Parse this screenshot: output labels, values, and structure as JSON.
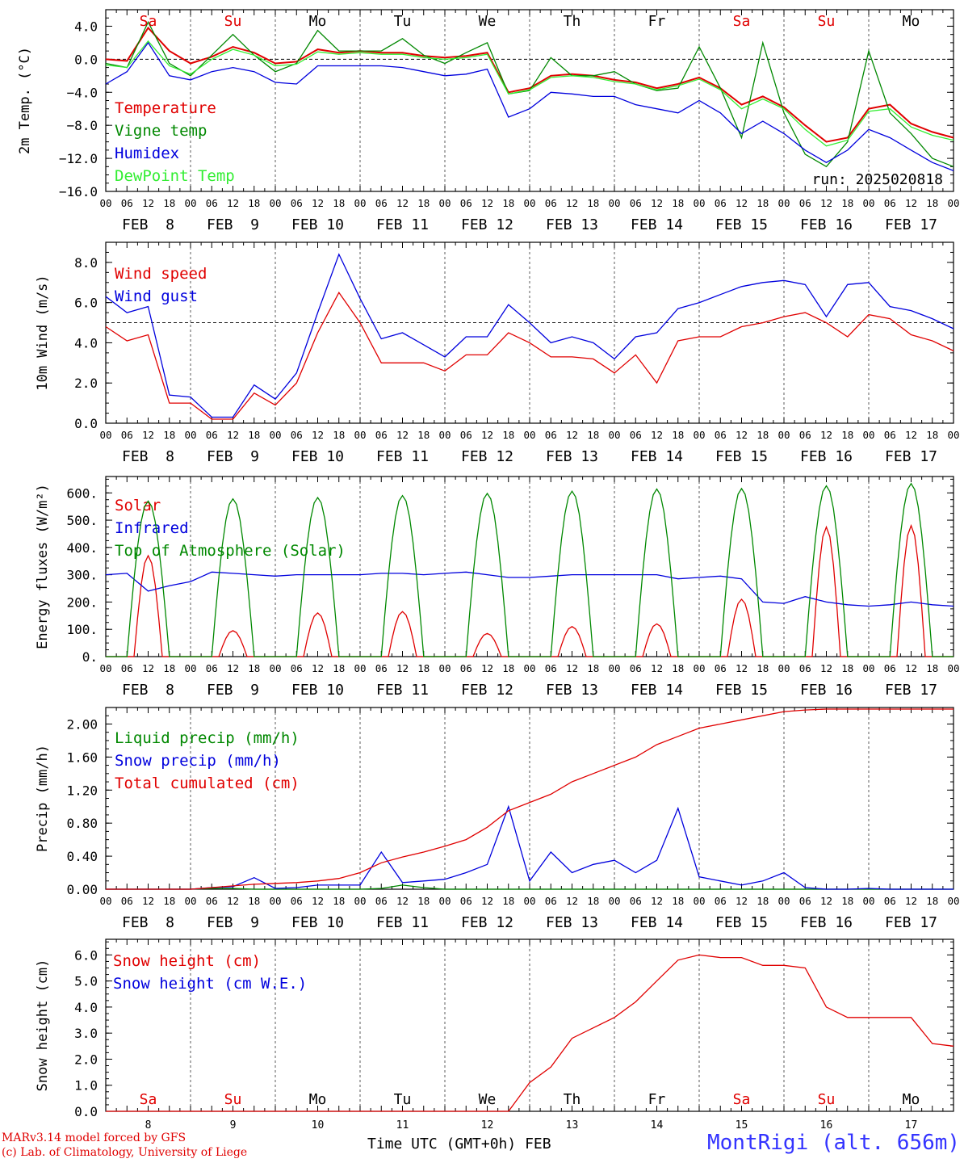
{
  "chart_data": [
    {
      "type": "line",
      "ylabel": "2m Temp. (°C)",
      "ylim": [
        -16,
        6
      ],
      "yticks": [
        4.0,
        0.0,
        -4.0,
        -8.0,
        -12.0,
        -16.0
      ],
      "ytick_labels": [
        "4.0",
        "0.0",
        "−4.0",
        "−8.0",
        "−12.0",
        "−16.0"
      ],
      "reference_line": 0,
      "annotation": "run: 2025020818",
      "x_hours": [
        0,
        6,
        12,
        18,
        24,
        30,
        36,
        42,
        48,
        54,
        60,
        66,
        72,
        78,
        84,
        90,
        96,
        102,
        108,
        114,
        120,
        126,
        132,
        138,
        144,
        150,
        156,
        162,
        168,
        174,
        180,
        186,
        192,
        198,
        204,
        210,
        216,
        222,
        228,
        234,
        240
      ],
      "series": [
        {
          "name": "Temperature",
          "color": "#e00000",
          "values": [
            0.0,
            -0.2,
            3.8,
            1.0,
            -0.5,
            0.3,
            1.5,
            0.8,
            -0.5,
            -0.3,
            1.2,
            0.8,
            1.0,
            0.8,
            0.8,
            0.4,
            0.2,
            0.4,
            0.8,
            -4.0,
            -3.5,
            -2.0,
            -1.8,
            -2.0,
            -2.5,
            -2.8,
            -3.5,
            -3.0,
            -2.2,
            -3.5,
            -5.5,
            -4.5,
            -5.8,
            -8.0,
            -10.0,
            -9.5,
            -6.0,
            -5.5,
            -7.8,
            -8.8,
            -9.5
          ]
        },
        {
          "name": "Vigne temp",
          "color": "#008800",
          "values": [
            -0.5,
            -1.0,
            4.5,
            -0.5,
            -2.0,
            0.5,
            3.0,
            0.5,
            -1.5,
            -0.5,
            3.5,
            1.0,
            1.0,
            1.0,
            2.5,
            0.5,
            -0.5,
            0.8,
            2.0,
            -4.2,
            -3.8,
            0.2,
            -2.0,
            -2.0,
            -1.5,
            -3.0,
            -3.8,
            -3.5,
            1.5,
            -3.5,
            -9.5,
            2.0,
            -6.5,
            -11.5,
            -13.0,
            -10.0,
            1.0,
            -6.5,
            -9.0,
            -12.0,
            -13.0
          ]
        },
        {
          "name": "Humidex",
          "color": "#0000dd",
          "values": [
            -3.0,
            -1.5,
            2.0,
            -2.0,
            -2.5,
            -1.5,
            -1.0,
            -1.5,
            -2.8,
            -3.0,
            -0.8,
            -0.8,
            -0.8,
            -0.8,
            -1.0,
            -1.5,
            -2.0,
            -1.8,
            -1.2,
            -7.0,
            -6.0,
            -4.0,
            -4.2,
            -4.5,
            -4.5,
            -5.5,
            -6.0,
            -6.5,
            -5.0,
            -6.5,
            -9.0,
            -7.5,
            -9.0,
            -11.0,
            -12.5,
            -11.0,
            -8.5,
            -9.5,
            -11.0,
            -12.5,
            -13.5
          ]
        },
        {
          "name": "DewPoint Temp",
          "color": "#33ee33",
          "values": [
            -0.7,
            -1.0,
            2.2,
            -0.8,
            -1.8,
            0.0,
            1.2,
            0.5,
            -0.8,
            -0.6,
            0.9,
            0.6,
            0.8,
            0.6,
            0.6,
            0.2,
            0.0,
            0.2,
            0.6,
            -4.2,
            -3.7,
            -2.2,
            -2.0,
            -2.2,
            -2.7,
            -3.0,
            -3.7,
            -3.2,
            -2.4,
            -3.7,
            -6.0,
            -4.8,
            -6.0,
            -8.5,
            -10.5,
            -9.8,
            -6.3,
            -6.0,
            -8.2,
            -9.2,
            -9.8
          ]
        }
      ]
    },
    {
      "type": "line",
      "ylabel": "10m Wind (m/s)",
      "ylim": [
        0,
        9.0
      ],
      "yticks": [
        0.0,
        2.0,
        4.0,
        6.0,
        8.0
      ],
      "ytick_labels": [
        "0.0",
        "2.0",
        "4.0",
        "6.0",
        "8.0"
      ],
      "reference_line": 5.0,
      "x_hours": [
        0,
        6,
        12,
        18,
        24,
        30,
        36,
        42,
        48,
        54,
        60,
        66,
        72,
        78,
        84,
        90,
        96,
        102,
        108,
        114,
        120,
        126,
        132,
        138,
        144,
        150,
        156,
        162,
        168,
        174,
        180,
        186,
        192,
        198,
        204,
        210,
        216,
        222,
        228,
        234,
        240
      ],
      "series": [
        {
          "name": "Wind speed",
          "color": "#e00000",
          "values": [
            4.8,
            4.1,
            4.4,
            1.0,
            1.0,
            0.2,
            0.2,
            1.5,
            0.9,
            2.0,
            4.5,
            6.5,
            5.0,
            3.0,
            3.0,
            3.0,
            2.6,
            3.4,
            3.4,
            4.5,
            4.0,
            3.3,
            3.3,
            3.2,
            2.5,
            3.4,
            2.0,
            4.1,
            4.3,
            4.3,
            4.8,
            5.0,
            5.3,
            5.5,
            5.0,
            4.3,
            5.4,
            5.2,
            4.4,
            4.1,
            3.6
          ]
        },
        {
          "name": "Wind gust",
          "color": "#0000dd",
          "values": [
            6.3,
            5.5,
            5.8,
            1.4,
            1.3,
            0.3,
            0.3,
            1.9,
            1.2,
            2.5,
            5.5,
            8.4,
            6.2,
            4.2,
            4.5,
            3.9,
            3.3,
            4.3,
            4.3,
            5.9,
            5.0,
            4.0,
            4.3,
            4.0,
            3.2,
            4.3,
            4.5,
            5.7,
            6.0,
            6.4,
            6.8,
            7.0,
            7.1,
            6.9,
            5.3,
            6.9,
            7.0,
            5.8,
            5.6,
            5.2,
            4.7
          ]
        }
      ]
    },
    {
      "type": "line",
      "ylabel": "Energy fluxes (W/m²)",
      "ylim": [
        0,
        660
      ],
      "yticks": [
        0,
        100,
        200,
        300,
        400,
        500,
        600
      ],
      "ytick_labels": [
        "0.",
        "100.",
        "200.",
        "300.",
        "400.",
        "500.",
        "600."
      ],
      "x_hours": [
        0,
        6,
        12,
        18,
        24,
        30,
        36,
        42,
        48,
        54,
        60,
        66,
        72,
        78,
        84,
        90,
        96,
        102,
        108,
        114,
        120,
        126,
        132,
        138,
        144,
        150,
        156,
        162,
        168,
        174,
        180,
        186,
        192,
        198,
        204,
        210,
        216,
        222,
        228,
        234,
        240
      ],
      "series": [
        {
          "name": "Solar",
          "color": "#e00000",
          "daily_peak": [
            370,
            95,
            160,
            165,
            85,
            110,
            120,
            210,
            475,
            480
          ]
        },
        {
          "name": "Infrared",
          "color": "#0000dd",
          "values": [
            300,
            305,
            240,
            260,
            275,
            310,
            305,
            300,
            295,
            300,
            300,
            300,
            300,
            305,
            305,
            300,
            305,
            310,
            300,
            290,
            290,
            295,
            300,
            300,
            300,
            300,
            300,
            285,
            290,
            295,
            285,
            200,
            195,
            220,
            200,
            190,
            185,
            190,
            200,
            190,
            185
          ]
        },
        {
          "name": "Top of Atmosphere (Solar)",
          "color": "#008800",
          "daily_peak": [
            570,
            578,
            583,
            590,
            598,
            606,
            614,
            616,
            626,
            634
          ]
        }
      ]
    },
    {
      "type": "line",
      "ylabel": "Precip (mm/h)",
      "ylim": [
        0,
        2.2
      ],
      "yticks": [
        0.0,
        0.4,
        0.8,
        1.2,
        1.6,
        2.0
      ],
      "ytick_labels": [
        "0.00",
        "0.40",
        "0.80",
        "1.20",
        "1.60",
        "2.00"
      ],
      "x_hours": [
        0,
        6,
        12,
        18,
        24,
        30,
        36,
        42,
        48,
        54,
        60,
        66,
        72,
        78,
        84,
        90,
        96,
        102,
        108,
        114,
        120,
        126,
        132,
        138,
        144,
        150,
        156,
        162,
        168,
        174,
        180,
        186,
        192,
        198,
        204,
        210,
        216,
        222,
        228,
        234,
        240
      ],
      "series": [
        {
          "name": "Liquid precip (mm/h)",
          "color": "#008800",
          "values": [
            0,
            0,
            0,
            0,
            0,
            0.01,
            0.01,
            0,
            0,
            0,
            0,
            0,
            0,
            0.01,
            0.05,
            0.02,
            0,
            0,
            0,
            0,
            0,
            0,
            0,
            0,
            0,
            0,
            0,
            0,
            0,
            0,
            0,
            0,
            0,
            0,
            0,
            0,
            0,
            0,
            0,
            0,
            0
          ]
        },
        {
          "name": "Snow precip (mm/h)",
          "color": "#0000dd",
          "values": [
            0,
            0,
            0,
            0,
            0,
            0.02,
            0.03,
            0.14,
            0.01,
            0.02,
            0.05,
            0.05,
            0.05,
            0.45,
            0.08,
            0.1,
            0.12,
            0.2,
            0.3,
            1.0,
            0.1,
            0.45,
            0.2,
            0.3,
            0.35,
            0.2,
            0.35,
            0.98,
            0.15,
            0.1,
            0.05,
            0.1,
            0.2,
            0.02,
            0,
            0,
            0.01,
            0,
            0,
            0,
            0
          ]
        },
        {
          "name": "Total cumulated (cm)",
          "color": "#e00000",
          "values": [
            0,
            0,
            0,
            0,
            0,
            0.02,
            0.04,
            0.06,
            0.07,
            0.08,
            0.1,
            0.13,
            0.2,
            0.32,
            0.39,
            0.45,
            0.52,
            0.6,
            0.75,
            0.95,
            1.05,
            1.15,
            1.3,
            1.4,
            1.5,
            1.6,
            1.75,
            1.85,
            1.95,
            2.0,
            2.05,
            2.1,
            2.15,
            2.17,
            2.18,
            2.18,
            2.18,
            2.18,
            2.18,
            2.18,
            2.18
          ]
        }
      ]
    },
    {
      "type": "line",
      "ylabel": "Snow height (cm)",
      "ylim": [
        0,
        6.6
      ],
      "yticks": [
        0.0,
        1.0,
        2.0,
        3.0,
        4.0,
        5.0,
        6.0
      ],
      "ytick_labels": [
        "0.0",
        "1.0",
        "2.0",
        "3.0",
        "4.0",
        "5.0",
        "6.0"
      ],
      "xlabel": "Time UTC (GMT+0h) FEB",
      "x_hours": [
        0,
        6,
        12,
        18,
        24,
        30,
        36,
        42,
        48,
        54,
        60,
        66,
        72,
        78,
        84,
        90,
        96,
        102,
        108,
        114,
        120,
        126,
        132,
        138,
        144,
        150,
        156,
        162,
        168,
        174,
        180,
        186,
        192,
        198,
        204,
        210,
        216,
        222,
        228,
        234,
        240
      ],
      "series": [
        {
          "name": "Snow height (cm)",
          "color": "#e00000",
          "values": [
            0,
            0,
            0,
            0,
            0,
            0,
            0,
            0,
            0,
            0,
            0,
            0,
            0,
            0,
            0,
            0,
            0,
            0,
            0,
            0,
            1.1,
            1.7,
            2.8,
            3.2,
            3.6,
            4.2,
            5.0,
            5.8,
            6.0,
            5.9,
            5.9,
            5.6,
            5.6,
            5.5,
            4.0,
            3.6,
            3.6,
            3.6,
            3.6,
            2.6,
            2.5
          ]
        },
        {
          "name": "Snow height (cm W.E.)",
          "color": "#0000dd"
        }
      ]
    }
  ],
  "time_axis": {
    "hour_labels": [
      "00",
      "06",
      "12",
      "18"
    ],
    "end_label": "00",
    "date_labels": [
      "FEB  8",
      "FEB  9",
      "FEB 10",
      "FEB 11",
      "FEB 12",
      "FEB 13",
      "FEB 14",
      "FEB 15",
      "FEB 16",
      "FEB 17"
    ],
    "weekdays": [
      {
        "label": "Sa",
        "color": "#e00000"
      },
      {
        "label": "Su",
        "color": "#e00000"
      },
      {
        "label": "Mo",
        "color": "#000000"
      },
      {
        "label": "Tu",
        "color": "#000000"
      },
      {
        "label": "We",
        "color": "#000000"
      },
      {
        "label": "Th",
        "color": "#000000"
      },
      {
        "label": "Fr",
        "color": "#000000"
      },
      {
        "label": "Sa",
        "color": "#e00000"
      },
      {
        "label": "Su",
        "color": "#e00000"
      },
      {
        "label": "Mo",
        "color": "#000000"
      }
    ],
    "day_numbers": [
      "8",
      "9",
      "10",
      "11",
      "12",
      "13",
      "14",
      "15",
      "16",
      "17"
    ]
  },
  "footer": {
    "credit_line_1": "MARv3.14 model forced by GFS",
    "credit_line_2": "(c) Lab. of Climatology, University of Liege",
    "x_title": "Time UTC (GMT+0h) FEB",
    "station": "MontRigi (alt. 656m)"
  }
}
